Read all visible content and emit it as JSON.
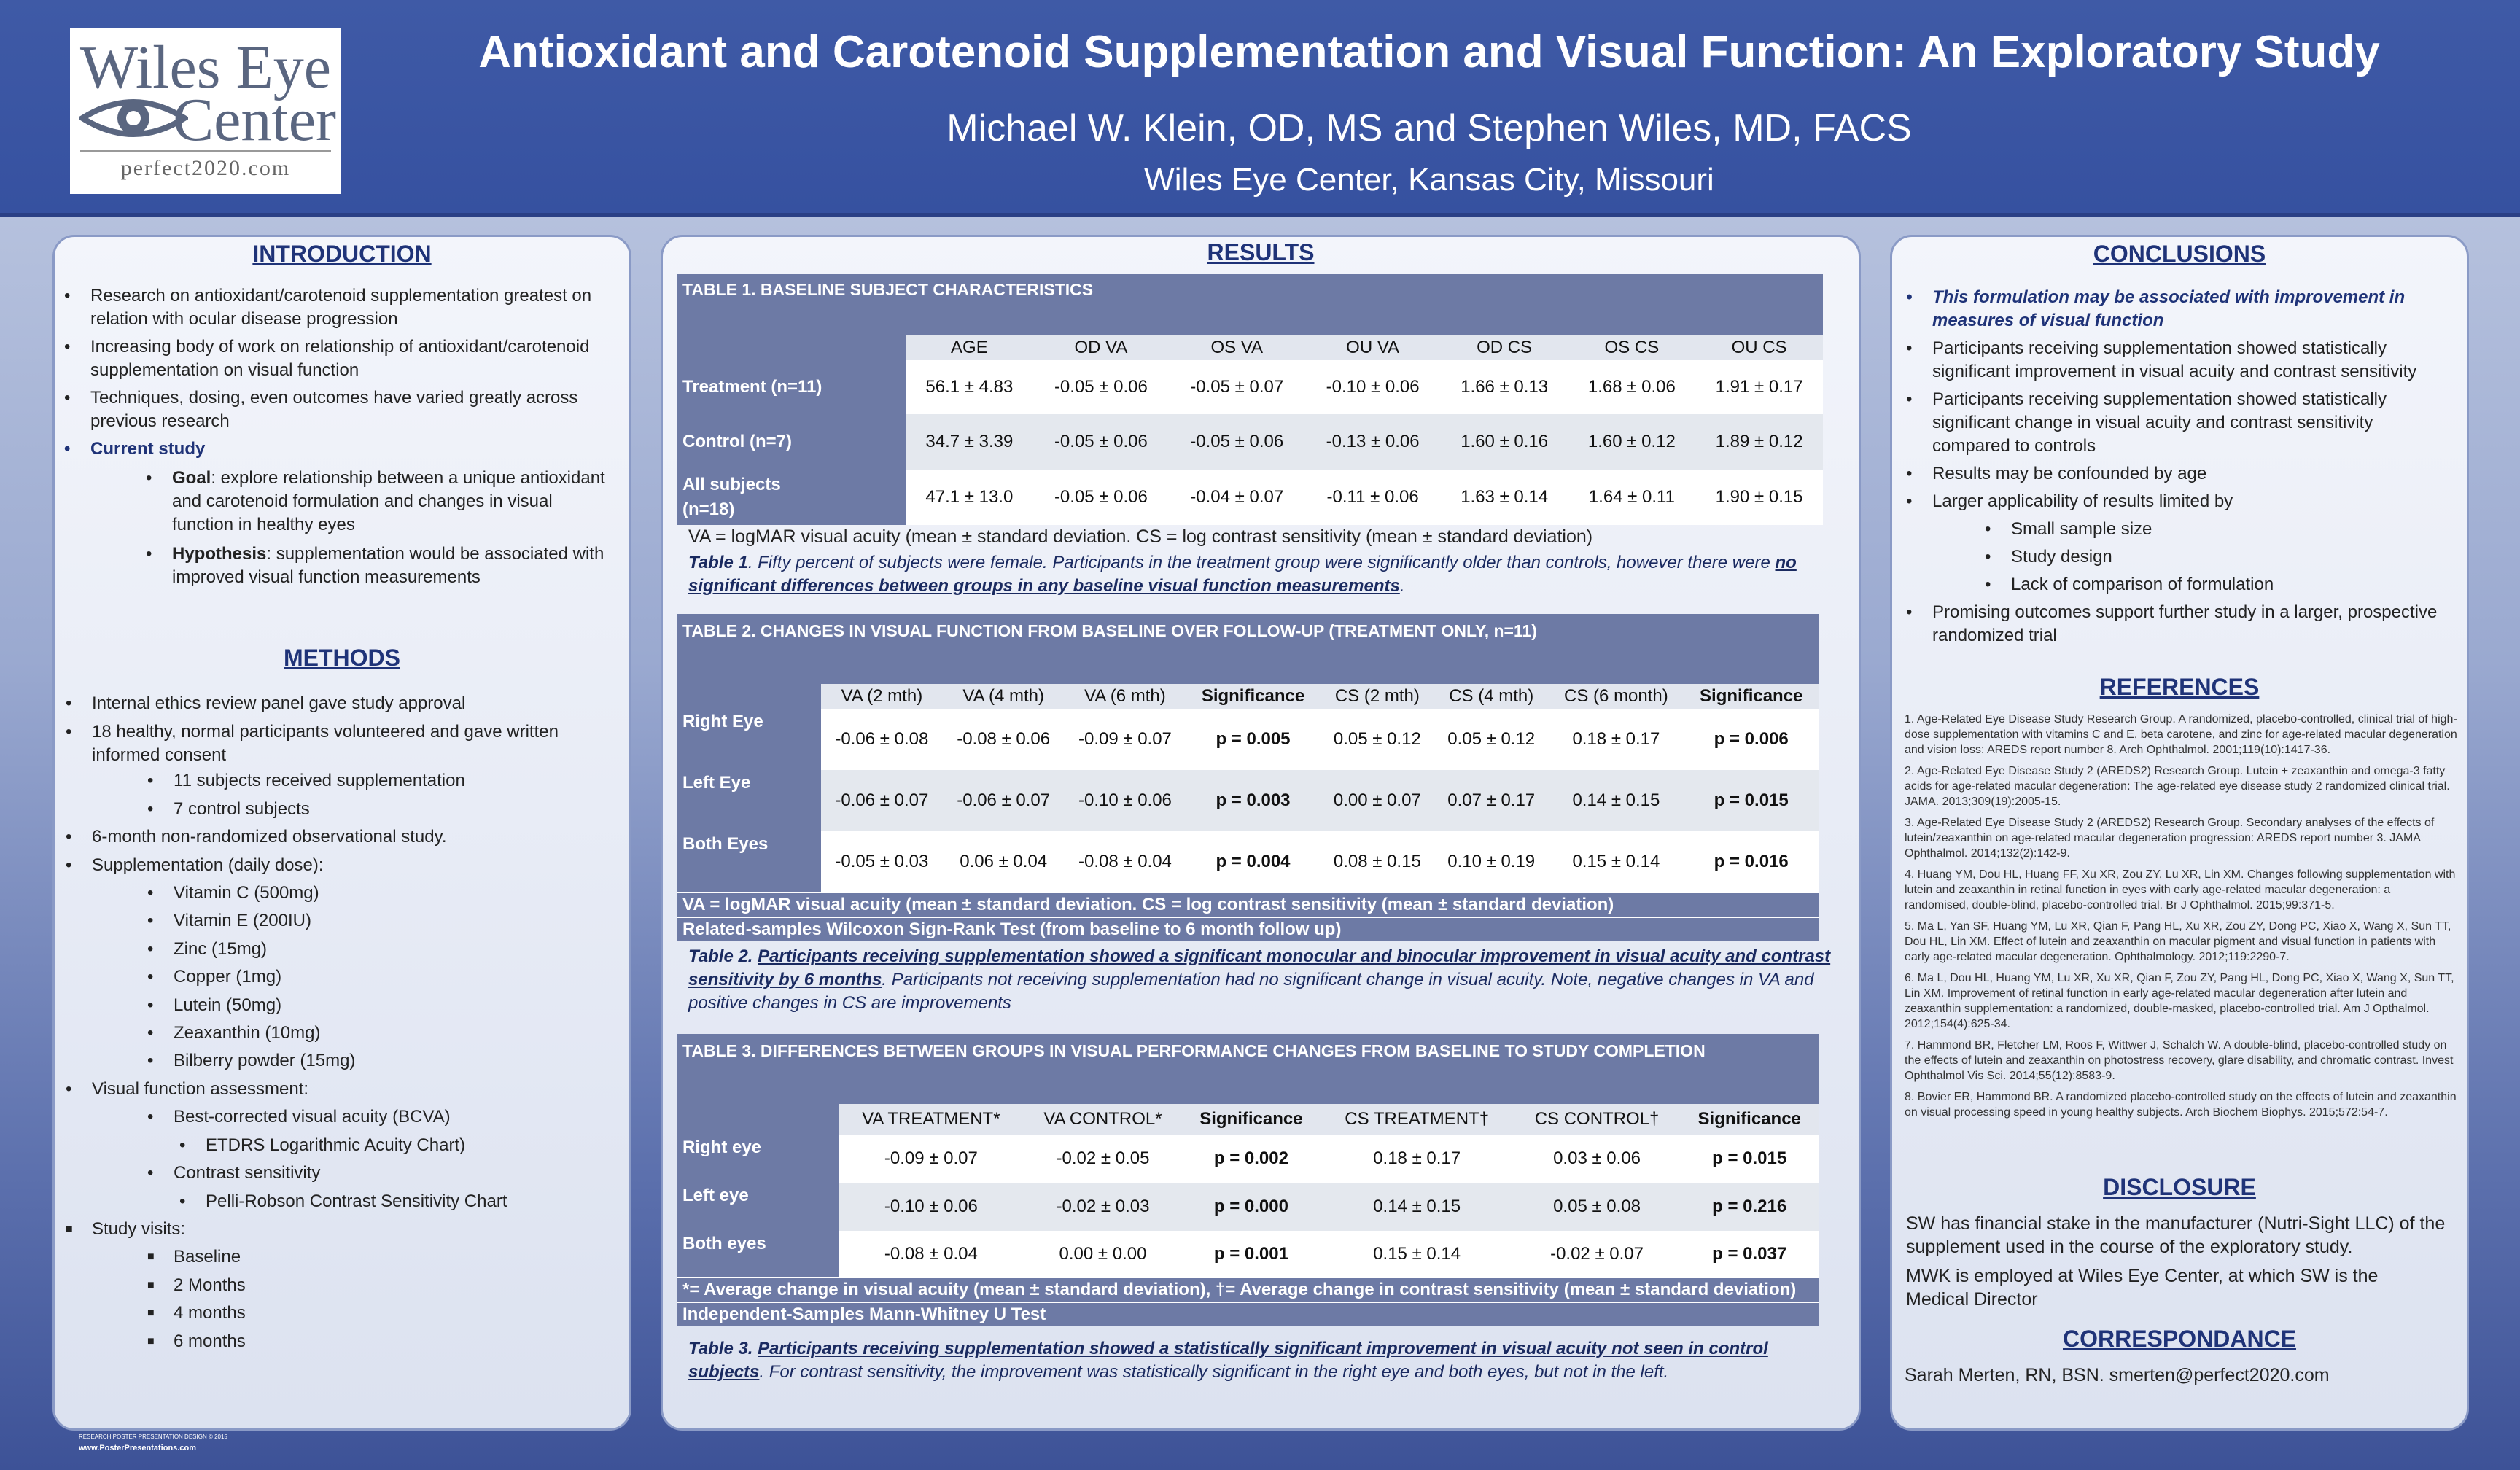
{
  "header": {
    "logo": {
      "line1": "Wiles Eye",
      "line2": "Center",
      "url": "perfect2020.com"
    },
    "title": "Antioxidant and Carotenoid Supplementation and Visual Function: An Exploratory Study",
    "authors": "Michael W. Klein, OD, MS and Stephen Wiles, MD, FACS",
    "affiliation": "Wiles Eye Center, Kansas City, Missouri"
  },
  "introduction": {
    "title": "INTRODUCTION",
    "b1": "Research on antioxidant/carotenoid supplementation greatest on relation with ocular disease progression",
    "b2": "Increasing body of work on relationship of antioxidant/carotenoid supplementation on visual function",
    "b3": "Techniques, dosing, even outcomes have varied greatly across previous research",
    "b4": "Current study",
    "goal_label": "Goal",
    "goal": ":  explore relationship between a unique antioxidant and carotenoid formulation and changes in visual function in healthy eyes",
    "hyp_label": "Hypothesis",
    "hyp": ":  supplementation would be associated with improved visual function measurements"
  },
  "methods": {
    "title": "METHODS",
    "m1": "Internal ethics review panel gave study approval",
    "m2": "18 healthy, normal participants volunteered and gave written informed consent",
    "m2a": "11 subjects received supplementation",
    "m2b": "7 control subjects",
    "m3": "6-month non-randomized observational study.",
    "m4": "Supplementation (daily dose):",
    "supp": [
      "Vitamin C (500mg)",
      "Vitamin E (200IU)",
      "Zinc (15mg)",
      "Copper (1mg)",
      "Lutein (50mg)",
      "Zeaxanthin (10mg)",
      "Bilberry powder (15mg)"
    ],
    "m5": " Visual function assessment:",
    "m5a": "Best-corrected visual acuity (BCVA)",
    "m5a1": "ETDRS Logarithmic Acuity Chart)",
    "m5b": "Contrast sensitivity",
    "m5b1": "Pelli-Robson Contrast Sensitivity Chart",
    "m6": "Study visits:",
    "visits": [
      "Baseline",
      "2 Months",
      "4 months",
      "6 months"
    ]
  },
  "results": {
    "title": "RESULTS",
    "t1": {
      "title": "TABLE 1.  BASELINE SUBJECT CHARACTERISTICS",
      "cols": [
        "AGE",
        "OD VA",
        "OS VA",
        "OU VA",
        "OD CS",
        "OS CS",
        "OU CS"
      ],
      "rows": [
        {
          "label": "Treatment (n=11)",
          "vals": [
            "56.1 ± 4.83",
            "-0.05 ± 0.06",
            "-0.05 ± 0.07",
            "-0.10 ± 0.06",
            "1.66 ± 0.13",
            "1.68 ± 0.06",
            "1.91 ± 0.17"
          ]
        },
        {
          "label": "Control (n=7)",
          "vals": [
            "34.7 ± 3.39",
            "-0.05 ± 0.06",
            "-0.05 ± 0.06",
            "-0.13 ± 0.06",
            "1.60 ± 0.16",
            "1.60 ± 0.12",
            "1.89 ± 0.12"
          ]
        },
        {
          "label": "All subjects",
          "label2": "(n=18)",
          "vals": [
            "47.1 ± 13.0",
            "-0.05 ± 0.06",
            "-0.04 ± 0.07",
            "-0.11 ± 0.06",
            "1.63 ± 0.14",
            "1.64 ± 0.11",
            "1.90 ± 0.15"
          ]
        }
      ],
      "note": "VA = logMAR visual acuity (mean ± standard deviation. CS = log contrast sensitivity (mean ± standard deviation)",
      "cap_a": "Table 1",
      "cap_b": ". Fifty percent of subjects were female. Participants in the treatment group were significantly older than controls, however there were ",
      "cap_c": "no significant differences between groups in any baseline visual function measurements",
      "cap_d": "."
    },
    "t2": {
      "title": "TABLE 2.  CHANGES IN VISUAL FUNCTION FROM BASELINE OVER FOLLOW-UP (TREATMENT ONLY, n=11)",
      "cols": [
        "VA (2 mth)",
        "VA (4 mth)",
        "VA (6 mth)",
        "Significance",
        "CS (2 mth)",
        "CS (4 mth)",
        "CS (6 month)",
        "Significance"
      ],
      "rows": [
        {
          "label": "Right Eye",
          "vals": [
            "-0.06 ± 0.08",
            "-0.08 ± 0.06",
            "-0.09 ± 0.07",
            "p = 0.005",
            "0.05 ± 0.12",
            "0.05 ± 0.12",
            "0.18 ± 0.17",
            "p = 0.006"
          ]
        },
        {
          "label": "Left Eye",
          "vals": [
            "-0.06 ± 0.07",
            "-0.06 ± 0.07",
            "-0.10 ± 0.06",
            "p = 0.003",
            "0.00 ± 0.07",
            "0.07 ± 0.17",
            "0.14 ± 0.15",
            "p = 0.015"
          ]
        },
        {
          "label": "Both Eyes",
          "vals": [
            "-0.05 ± 0.03",
            "0.06 ± 0.04",
            "-0.08 ± 0.04",
            "p = 0.004",
            "0.08 ± 0.15",
            "0.10 ± 0.19",
            "0.15 ± 0.14",
            "p = 0.016"
          ]
        }
      ],
      "foot1": "VA = logMAR visual acuity (mean ± standard deviation. CS = log contrast sensitivity (mean ± standard deviation)",
      "foot2": "Related-samples Wilcoxon Sign-Rank Test (from baseline to 6 month follow up)",
      "cap_a": "Table 2. ",
      "cap_b": "Participants receiving supplementation showed a significant monocular and binocular improvement in visual acuity and contrast sensitivity by 6 months",
      "cap_c": ".  Participants not receiving supplementation had no significant change in visual acuity.  Note, negative changes in VA and positive changes in CS are improvements"
    },
    "t3": {
      "title": "TABLE 3.  DIFFERENCES BETWEEN GROUPS IN VISUAL PERFORMANCE CHANGES FROM BASELINE TO STUDY COMPLETION",
      "cols": [
        "VA TREATMENT*",
        "VA CONTROL*",
        "Significance",
        "CS TREATMENT†",
        "CS CONTROL†",
        "Significance"
      ],
      "rows": [
        {
          "label": "Right eye",
          "vals": [
            "-0.09 ± 0.07",
            "-0.02 ± 0.05",
            "p = 0.002",
            "0.18 ± 0.17",
            "0.03 ± 0.06",
            "p = 0.015"
          ]
        },
        {
          "label": "Left eye",
          "vals": [
            "-0.10 ± 0.06",
            "-0.02 ± 0.03",
            "p = 0.000",
            "0.14 ± 0.15",
            "0.05 ± 0.08",
            "p = 0.216"
          ]
        },
        {
          "label": "Both eyes",
          "vals": [
            "-0.08 ± 0.04",
            "0.00 ± 0.00",
            "p = 0.001",
            "0.15 ± 0.14",
            "-0.02 ± 0.07",
            "p = 0.037"
          ]
        }
      ],
      "foot1": "*= Average change in visual acuity  (mean ± standard deviation), †= Average change in contrast sensitivity  (mean ± standard deviation)",
      "foot2": "Independent-Samples Mann-Whitney U Test",
      "cap_a": "Table 3. ",
      "cap_b": "Participants receiving supplementation showed a statistically significant improvement in visual acuity not seen in control subjects",
      "cap_c": ".  For contrast sensitivity, the improvement was statistically significant in the right eye and both eyes, but not in the left."
    }
  },
  "conclusions": {
    "title": "CONCLUSIONS",
    "c1": "This formulation may be associated with improvement in measures of visual function",
    "c2": "Participants receiving supplementation showed statistically significant improvement in visual acuity and contrast sensitivity",
    "c3": "Participants receiving supplementation showed statistically significant change in visual acuity and contrast sensitivity compared to controls",
    "c4": "Results may be confounded by age",
    "c5": "Larger applicability of results limited by",
    "c5a": "Small sample size",
    "c5b": "Study design",
    "c5c": "Lack of comparison of formulation",
    "c6": "Promising outcomes support further study in a larger, prospective randomized trial"
  },
  "references": {
    "title": "REFERENCES",
    "items": [
      "1. Age-Related Eye Disease Study Research Group.  A randomized, placebo-controlled, clinical trial of high-dose supplementation with vitamins C and E, beta carotene, and zinc for age-related macular degeneration and vision loss: AREDS report number 8.  Arch Ophthalmol. 2001;119(10):1417-36.",
      "2. Age-Related Eye Disease Study 2 (AREDS2) Research Group.  Lutein + zeaxanthin and omega-3 fatty acids for age-related macular degeneration: The age-related eye disease study 2 randomized clinical trial.  JAMA. 2013;309(19):2005-15.",
      "3. Age-Related Eye Disease Study 2 (AREDS2) Research Group.  Secondary analyses of the effects of lutein/zeaxanthin on age-related macular degeneration progression: AREDS report number 3. JAMA Ophthalmol. 2014;132(2):142-9.",
      "4. Huang YM, Dou HL, Huang FF, Xu XR, Zou ZY, Lu XR, Lin XM.  Changes following supplementation with lutein and zeaxanthin in retinal function in eyes with early age-related macular degeneration: a randomised, double-blind, placebo-controlled trial. Br J Ophthalmol. 2015;99:371-5.",
      "5. Ma L, Yan SF, Huang YM, Lu XR, Qian F, Pang HL, Xu XR, Zou ZY, Dong PC, Xiao X, Wang X, Sun TT, Dou HL, Lin XM. Effect of lutein and zeaxanthin on macular pigment and visual function in patients with early age-related macular degeneration.  Ophthalmology. 2012;119:2290-7.",
      "6. Ma L, Dou HL, Huang YM, Lu XR, Xu XR, Qian F, Zou ZY, Pang HL, Dong PC, Xiao X, Wang X, Sun TT, Lin XM.  Improvement of retinal function in early age-related macular degeneration after lutein and zeaxanthin supplementation: a randomized, double-masked, placebo-controlled trial. Am J Opthalmol. 2012;154(4):625-34.",
      "7. Hammond BR, Fletcher LM, Roos F, Wittwer J, Schalch W.  A double-blind, placebo-controlled study on the effects of lutein and zeaxanthin on photostress recovery, glare disability, and chromatic contrast. Invest Ophthalmol Vis Sci. 2014;55(12):8583-9.",
      "8. Bovier ER, Hammond BR.  A randomized placebo-controlled study on the effects of lutein and zeaxanthin on visual processing speed in young healthy subjects. Arch Biochem Biophys. 2015;572:54-7."
    ]
  },
  "disclosure": {
    "title": "DISCLOSURE",
    "d1": "SW has financial stake in the manufacturer (Nutri-Sight LLC) of the supplement used in the course of the exploratory study.",
    "d2": "MWK is employed at Wiles Eye Center, at which SW is the Medical Director"
  },
  "correspondance": {
    "title": "CORRESPONDANCE",
    "text": "Sarah Merten, RN, BSN.   smerten@perfect2020.com"
  },
  "footer": {
    "line1": "RESEARCH POSTER PRESENTATION DESIGN © 2015",
    "line2": "www.PosterPresentations.com"
  }
}
